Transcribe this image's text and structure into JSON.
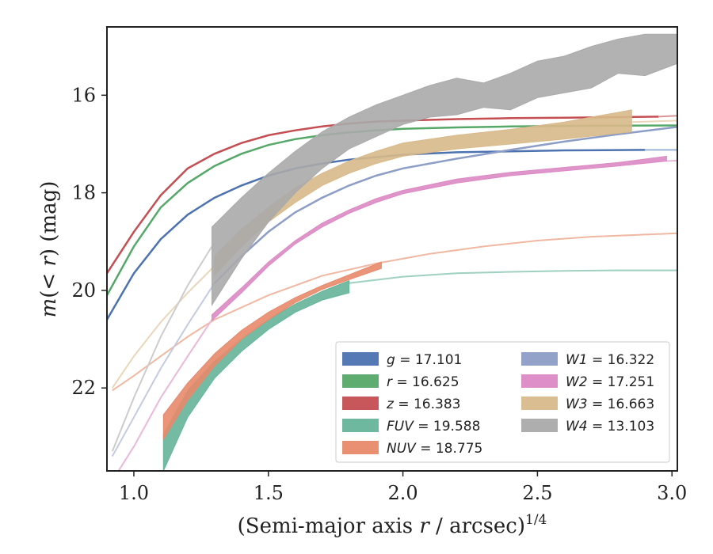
{
  "chart_data": {
    "type": "line",
    "title": "",
    "xlabel_main": "(Semi-major axis ",
    "xlabel_var": "r",
    "xlabel_rest": " / arcsec)",
    "xlabel_sup": "1/4",
    "ylabel_main": "m(< r) (mag)",
    "xlim": [
      0.9,
      3.02
    ],
    "ylim": [
      23.7,
      14.6
    ],
    "y_inverted": true,
    "xticks": [
      "1.0",
      "1.5",
      "2.0",
      "2.5",
      "3.0"
    ],
    "yticks": [
      "16",
      "18",
      "20",
      "22"
    ],
    "grid": false,
    "legend_position": "lower-right",
    "series": [
      {
        "name": "g",
        "value": "17.101",
        "color": "#4c72b0",
        "band": false,
        "x": [
          0.9,
          1.0,
          1.1,
          1.2,
          1.3,
          1.4,
          1.5,
          1.6,
          1.7,
          1.8,
          1.9,
          2.0,
          2.2,
          2.4,
          2.6,
          2.9
        ],
        "y": [
          20.6,
          19.65,
          18.95,
          18.45,
          18.1,
          17.85,
          17.65,
          17.5,
          17.4,
          17.32,
          17.27,
          17.22,
          17.17,
          17.15,
          17.13,
          17.12
        ]
      },
      {
        "name": "r",
        "value": "16.625",
        "color": "#55a868",
        "band": false,
        "x": [
          0.9,
          1.0,
          1.1,
          1.2,
          1.3,
          1.4,
          1.5,
          1.6,
          1.7,
          1.8,
          1.9,
          2.0,
          2.2,
          2.4,
          2.6,
          2.8,
          3.02
        ],
        "y": [
          20.1,
          19.1,
          18.3,
          17.8,
          17.45,
          17.2,
          17.02,
          16.9,
          16.82,
          16.76,
          16.72,
          16.69,
          16.66,
          16.64,
          16.63,
          16.625,
          16.62
        ]
      },
      {
        "name": "z",
        "value": "16.383",
        "color": "#c44e52",
        "band": false,
        "x": [
          0.9,
          1.0,
          1.1,
          1.2,
          1.3,
          1.4,
          1.5,
          1.6,
          1.7,
          1.8,
          1.9,
          2.0,
          2.2,
          2.4,
          2.6,
          2.8,
          2.95
        ],
        "y": [
          19.65,
          18.8,
          18.05,
          17.5,
          17.2,
          16.98,
          16.82,
          16.72,
          16.64,
          16.58,
          16.54,
          16.52,
          16.49,
          16.47,
          16.46,
          16.45,
          16.44
        ]
      },
      {
        "name": "FUV",
        "value": "19.588",
        "color": "#66b49a",
        "band": true,
        "x": [
          1.11,
          1.2,
          1.3,
          1.4,
          1.5,
          1.6,
          1.7,
          1.8
        ],
        "y_low": [
          23.7,
          22.6,
          21.8,
          21.25,
          20.8,
          20.45,
          20.2,
          20.05
        ],
        "y_high": [
          22.95,
          22.05,
          21.45,
          21.0,
          20.6,
          20.28,
          20.02,
          19.8
        ]
      },
      {
        "name": "NUV",
        "value": "18.775",
        "color": "#e8896a",
        "band": true,
        "x": [
          1.11,
          1.2,
          1.3,
          1.4,
          1.5,
          1.6,
          1.7,
          1.8,
          1.92
        ],
        "y_low": [
          23.05,
          22.25,
          21.55,
          21.0,
          20.6,
          20.25,
          19.98,
          19.78,
          19.55
        ],
        "y_high": [
          22.55,
          21.9,
          21.3,
          20.82,
          20.45,
          20.15,
          19.9,
          19.68,
          19.42
        ]
      },
      {
        "name": "W1",
        "value": "16.322",
        "color": "#8c9dc6",
        "band": false,
        "x": [
          1.3,
          1.4,
          1.5,
          1.6,
          1.7,
          1.8,
          1.9,
          2.0,
          2.2,
          2.4,
          2.6,
          2.8,
          3.02
        ],
        "y": [
          19.85,
          19.3,
          18.8,
          18.4,
          18.1,
          17.85,
          17.65,
          17.5,
          17.3,
          17.12,
          16.95,
          16.8,
          16.65
        ]
      },
      {
        "name": "W2",
        "value": "17.251",
        "color": "#dc89c4",
        "band": true,
        "x": [
          1.29,
          1.4,
          1.5,
          1.6,
          1.7,
          1.8,
          1.9,
          2.0,
          2.2,
          2.4,
          2.6,
          2.8,
          2.98
        ],
        "y_low": [
          20.62,
          20.05,
          19.5,
          19.05,
          18.7,
          18.42,
          18.2,
          18.02,
          17.8,
          17.65,
          17.55,
          17.45,
          17.35
        ],
        "y_high": [
          20.5,
          19.95,
          19.42,
          18.98,
          18.62,
          18.35,
          18.12,
          17.95,
          17.72,
          17.58,
          17.48,
          17.38,
          17.25
        ]
      },
      {
        "name": "W3",
        "value": "16.663",
        "color": "#d8b98a",
        "band": true,
        "x": [
          1.3,
          1.4,
          1.5,
          1.6,
          1.7,
          1.8,
          1.9,
          2.0,
          2.2,
          2.4,
          2.6,
          2.85
        ],
        "y_low": [
          19.7,
          19.1,
          18.6,
          18.2,
          17.85,
          17.6,
          17.4,
          17.25,
          17.1,
          17.0,
          16.9,
          16.75
        ],
        "y_high": [
          19.3,
          18.75,
          18.3,
          17.9,
          17.6,
          17.35,
          17.15,
          16.98,
          16.82,
          16.7,
          16.55,
          16.3
        ]
      },
      {
        "name": "W4",
        "value": "13.103",
        "color": "#aaaaaa",
        "band": true,
        "x": [
          1.29,
          1.4,
          1.5,
          1.6,
          1.7,
          1.8,
          1.9,
          2.0,
          2.1,
          2.2,
          2.3,
          2.4,
          2.5,
          2.6,
          2.7,
          2.8,
          2.9,
          3.02
        ],
        "y_low": [
          20.3,
          19.35,
          18.6,
          18.0,
          17.5,
          17.1,
          16.85,
          16.6,
          16.45,
          16.4,
          16.25,
          16.3,
          16.05,
          15.95,
          15.85,
          15.55,
          15.6,
          15.35
        ],
        "y_high": [
          18.7,
          18.1,
          17.6,
          17.15,
          16.75,
          16.45,
          16.2,
          16.0,
          15.8,
          15.65,
          15.75,
          15.55,
          15.3,
          15.2,
          15.0,
          14.85,
          14.75,
          14.75
        ]
      }
    ],
    "model_curves": [
      {
        "name": "FUV",
        "color": "#9fd0c0",
        "x": [
          1.8,
          2.0,
          2.2,
          2.4,
          2.6,
          2.8,
          3.02
        ],
        "y": [
          19.85,
          19.72,
          19.65,
          19.62,
          19.6,
          19.59,
          19.59
        ]
      },
      {
        "name": "NUV",
        "color": "#f0b8a2",
        "x": [
          0.92,
          1.0,
          1.1,
          1.2,
          1.3,
          1.5,
          1.7,
          1.9,
          2.1,
          2.3,
          2.5,
          2.7,
          3.02
        ],
        "y": [
          22.05,
          21.75,
          21.35,
          20.95,
          20.6,
          20.1,
          19.7,
          19.45,
          19.25,
          19.1,
          18.98,
          18.9,
          18.83
        ]
      },
      {
        "name": "FUVlow",
        "color": "#9fd0c0",
        "x": [
          0.92,
          1.0,
          1.05,
          1.11
        ],
        "y": [
          23.7,
          23.7,
          23.7,
          23.7
        ]
      },
      {
        "name": "W1",
        "color": "#c2cbe0",
        "x": [
          0.92,
          1.0,
          1.1,
          1.2,
          1.3
        ],
        "y": [
          23.4,
          22.6,
          21.6,
          20.7,
          19.85
        ]
      },
      {
        "name": "W2",
        "color": "#eab8d9",
        "x": [
          0.92,
          1.0,
          1.1,
          1.2,
          1.29
        ],
        "y": [
          23.9,
          23.2,
          22.2,
          21.35,
          20.6
        ]
      },
      {
        "name": "W2tail",
        "color": "#eab8d9",
        "x": [
          2.98,
          3.02
        ],
        "y": [
          17.35,
          17.34
        ]
      },
      {
        "name": "W3",
        "color": "#ead6b8",
        "x": [
          0.92,
          1.0,
          1.1,
          1.2,
          1.3
        ],
        "y": [
          22.0,
          21.35,
          20.65,
          20.05,
          19.5
        ]
      },
      {
        "name": "W3tail",
        "color": "#ead6b8",
        "x": [
          2.85,
          3.02
        ],
        "y": [
          16.55,
          16.52
        ]
      },
      {
        "name": "W4",
        "color": "#cccccc",
        "x": [
          0.92,
          1.0,
          1.1,
          1.2,
          1.29
        ],
        "y": [
          23.3,
          22.2,
          20.95,
          19.9,
          19.1
        ]
      },
      {
        "name": "gtail",
        "color": "#9bb2d6",
        "x": [
          2.9,
          3.02
        ],
        "y": [
          17.12,
          17.12
        ]
      },
      {
        "name": "ztail",
        "color": "#d99497",
        "x": [
          2.95,
          3.02
        ],
        "y": [
          16.44,
          16.42
        ]
      }
    ]
  }
}
